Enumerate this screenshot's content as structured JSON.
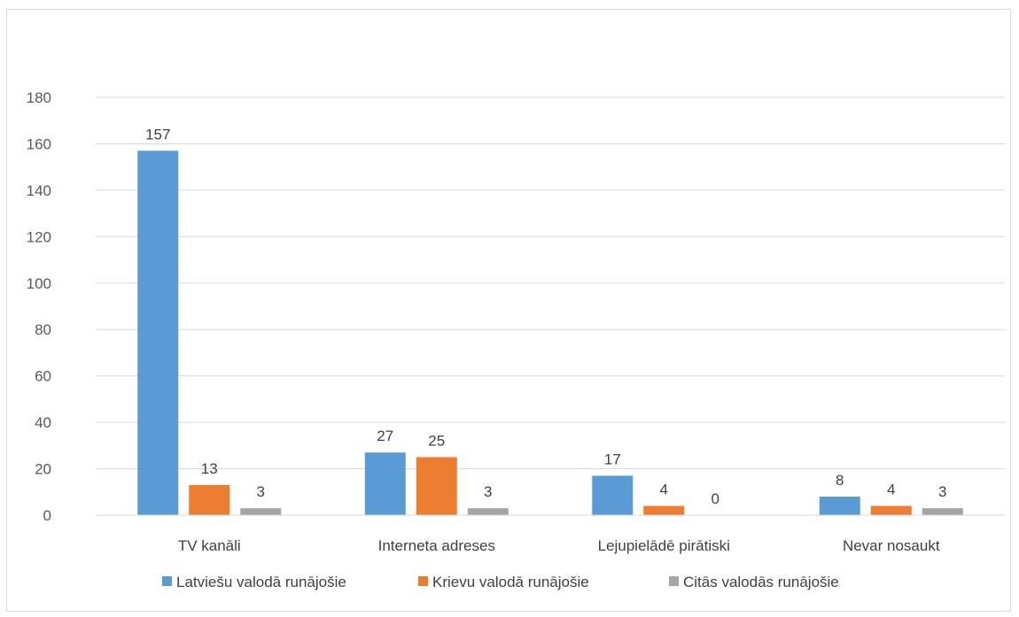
{
  "chart_data": {
    "type": "bar",
    "categories": [
      "TV kanāli",
      "Interneta adreses",
      "Lejupielādē pirātiski",
      "Nevar nosaukt"
    ],
    "series": [
      {
        "name": "Latviešu valodā runājošie",
        "color": "#5b9bd5",
        "values": [
          157,
          27,
          17,
          8
        ]
      },
      {
        "name": "Krievu valodā runājošie",
        "color": "#ed7d31",
        "values": [
          13,
          25,
          4,
          4
        ]
      },
      {
        "name": "Citās valodās runājošie",
        "color": "#a5a5a5",
        "values": [
          3,
          3,
          0,
          3
        ]
      }
    ],
    "y_ticks": [
      "0",
      "20",
      "40",
      "60",
      "80",
      "100",
      "120",
      "140",
      "160",
      "180"
    ],
    "ylim": [
      0,
      180
    ],
    "grid": true,
    "legend_position": "bottom"
  }
}
